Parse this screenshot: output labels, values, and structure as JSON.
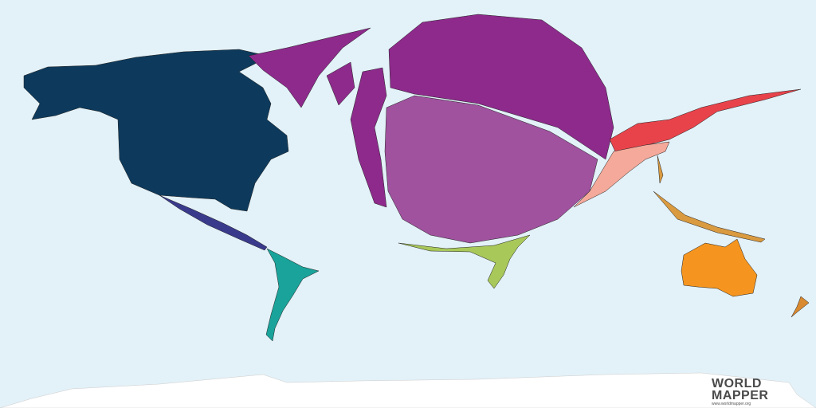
{
  "map": {
    "type": "cartogram",
    "ocean_color": "#e3f1f8",
    "regions": [
      {
        "name": "North America",
        "color": "#0d3a5c"
      },
      {
        "name": "Europe",
        "color": "#8e2a8c"
      },
      {
        "name": "Central Asia / Russia",
        "color": "#a0529e"
      },
      {
        "name": "Central America",
        "color": "#3a3a8c"
      },
      {
        "name": "South America",
        "color": "#1aa39a"
      },
      {
        "name": "Africa",
        "color": "#a8c85a"
      },
      {
        "name": "East Asia",
        "color": "#e8434b"
      },
      {
        "name": "South Asia",
        "color": "#f4a99a"
      },
      {
        "name": "Southeast Asia",
        "color": "#d99a40"
      },
      {
        "name": "Australia",
        "color": "#f5951f"
      },
      {
        "name": "New Zealand",
        "color": "#d98a30"
      },
      {
        "name": "Antarctica",
        "color": "#ffffff"
      }
    ]
  },
  "logo": {
    "line1": "WORLD",
    "line2": "MAPPER",
    "url": "www.worldmapper.org"
  }
}
